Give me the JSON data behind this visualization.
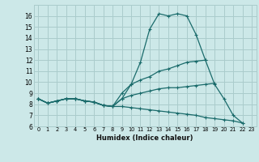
{
  "title": "",
  "xlabel": "Humidex (Indice chaleur)",
  "bg_color": "#cce8e8",
  "grid_color": "#aacccc",
  "line_color": "#1a6b6b",
  "xlim": [
    -0.5,
    23.5
  ],
  "ylim": [
    6,
    17
  ],
  "xticks": [
    0,
    1,
    2,
    3,
    4,
    5,
    6,
    7,
    8,
    9,
    10,
    11,
    12,
    13,
    14,
    15,
    16,
    17,
    18,
    19,
    20,
    21,
    22,
    23
  ],
  "yticks": [
    6,
    7,
    8,
    9,
    10,
    11,
    12,
    13,
    14,
    15,
    16
  ],
  "series": [
    [
      8.5,
      8.1,
      8.3,
      8.5,
      8.5,
      8.3,
      8.2,
      7.9,
      7.8,
      8.5,
      9.8,
      11.8,
      14.8,
      16.2,
      16.0,
      16.2,
      16.0,
      14.3,
      12.0,
      9.8,
      8.5,
      7.0,
      6.3,
      null
    ],
    [
      8.5,
      8.1,
      8.3,
      8.5,
      8.5,
      8.3,
      8.2,
      7.9,
      7.8,
      9.0,
      9.8,
      10.2,
      10.5,
      11.0,
      11.2,
      11.5,
      11.8,
      11.9,
      12.0,
      null,
      null,
      null,
      null,
      null
    ],
    [
      8.5,
      8.1,
      8.3,
      8.5,
      8.5,
      8.3,
      8.2,
      7.9,
      7.8,
      8.5,
      8.8,
      9.0,
      9.2,
      9.4,
      9.5,
      9.5,
      9.6,
      9.7,
      9.8,
      9.9,
      null,
      null,
      null,
      null
    ],
    [
      8.5,
      8.1,
      8.3,
      8.5,
      8.5,
      8.3,
      8.2,
      7.9,
      7.8,
      7.8,
      7.7,
      7.6,
      7.5,
      7.4,
      7.3,
      7.2,
      7.1,
      7.0,
      6.8,
      6.7,
      6.6,
      6.5,
      6.3,
      null
    ]
  ]
}
